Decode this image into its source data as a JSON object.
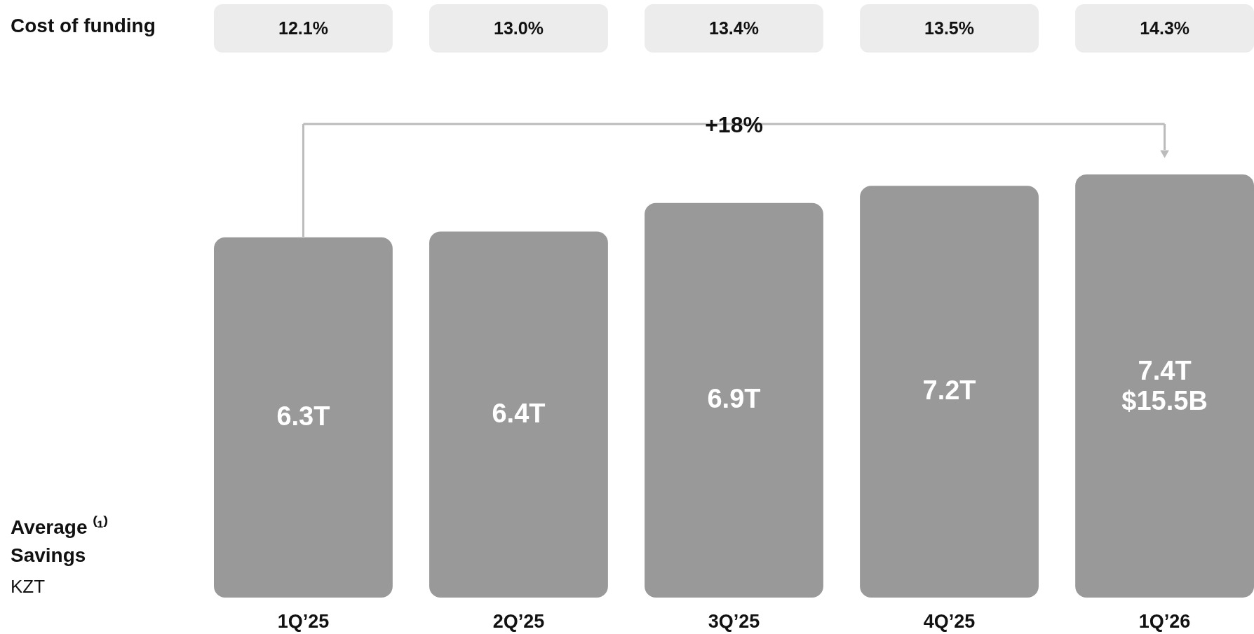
{
  "chart_data": {
    "type": "bar",
    "categories": [
      "1Q’25",
      "2Q’25",
      "3Q’25",
      "4Q’25",
      "1Q’26"
    ],
    "values": [
      6.3,
      6.4,
      6.9,
      7.2,
      7.4
    ],
    "color": "#999999",
    "value_labels": [
      "6.3T",
      "6.4T",
      "6.9T",
      "7.2T",
      "7.4T"
    ],
    "ylabel": "Average ⁽¹⁾\nSavings",
    "annotations": [
      "Cost of funding",
      "+18%",
      "KZT",
      "$15.5B",
      "12.1%",
      "13.0%",
      "13.4%",
      "13.5%",
      "14.3%"
    ]
  }
}
